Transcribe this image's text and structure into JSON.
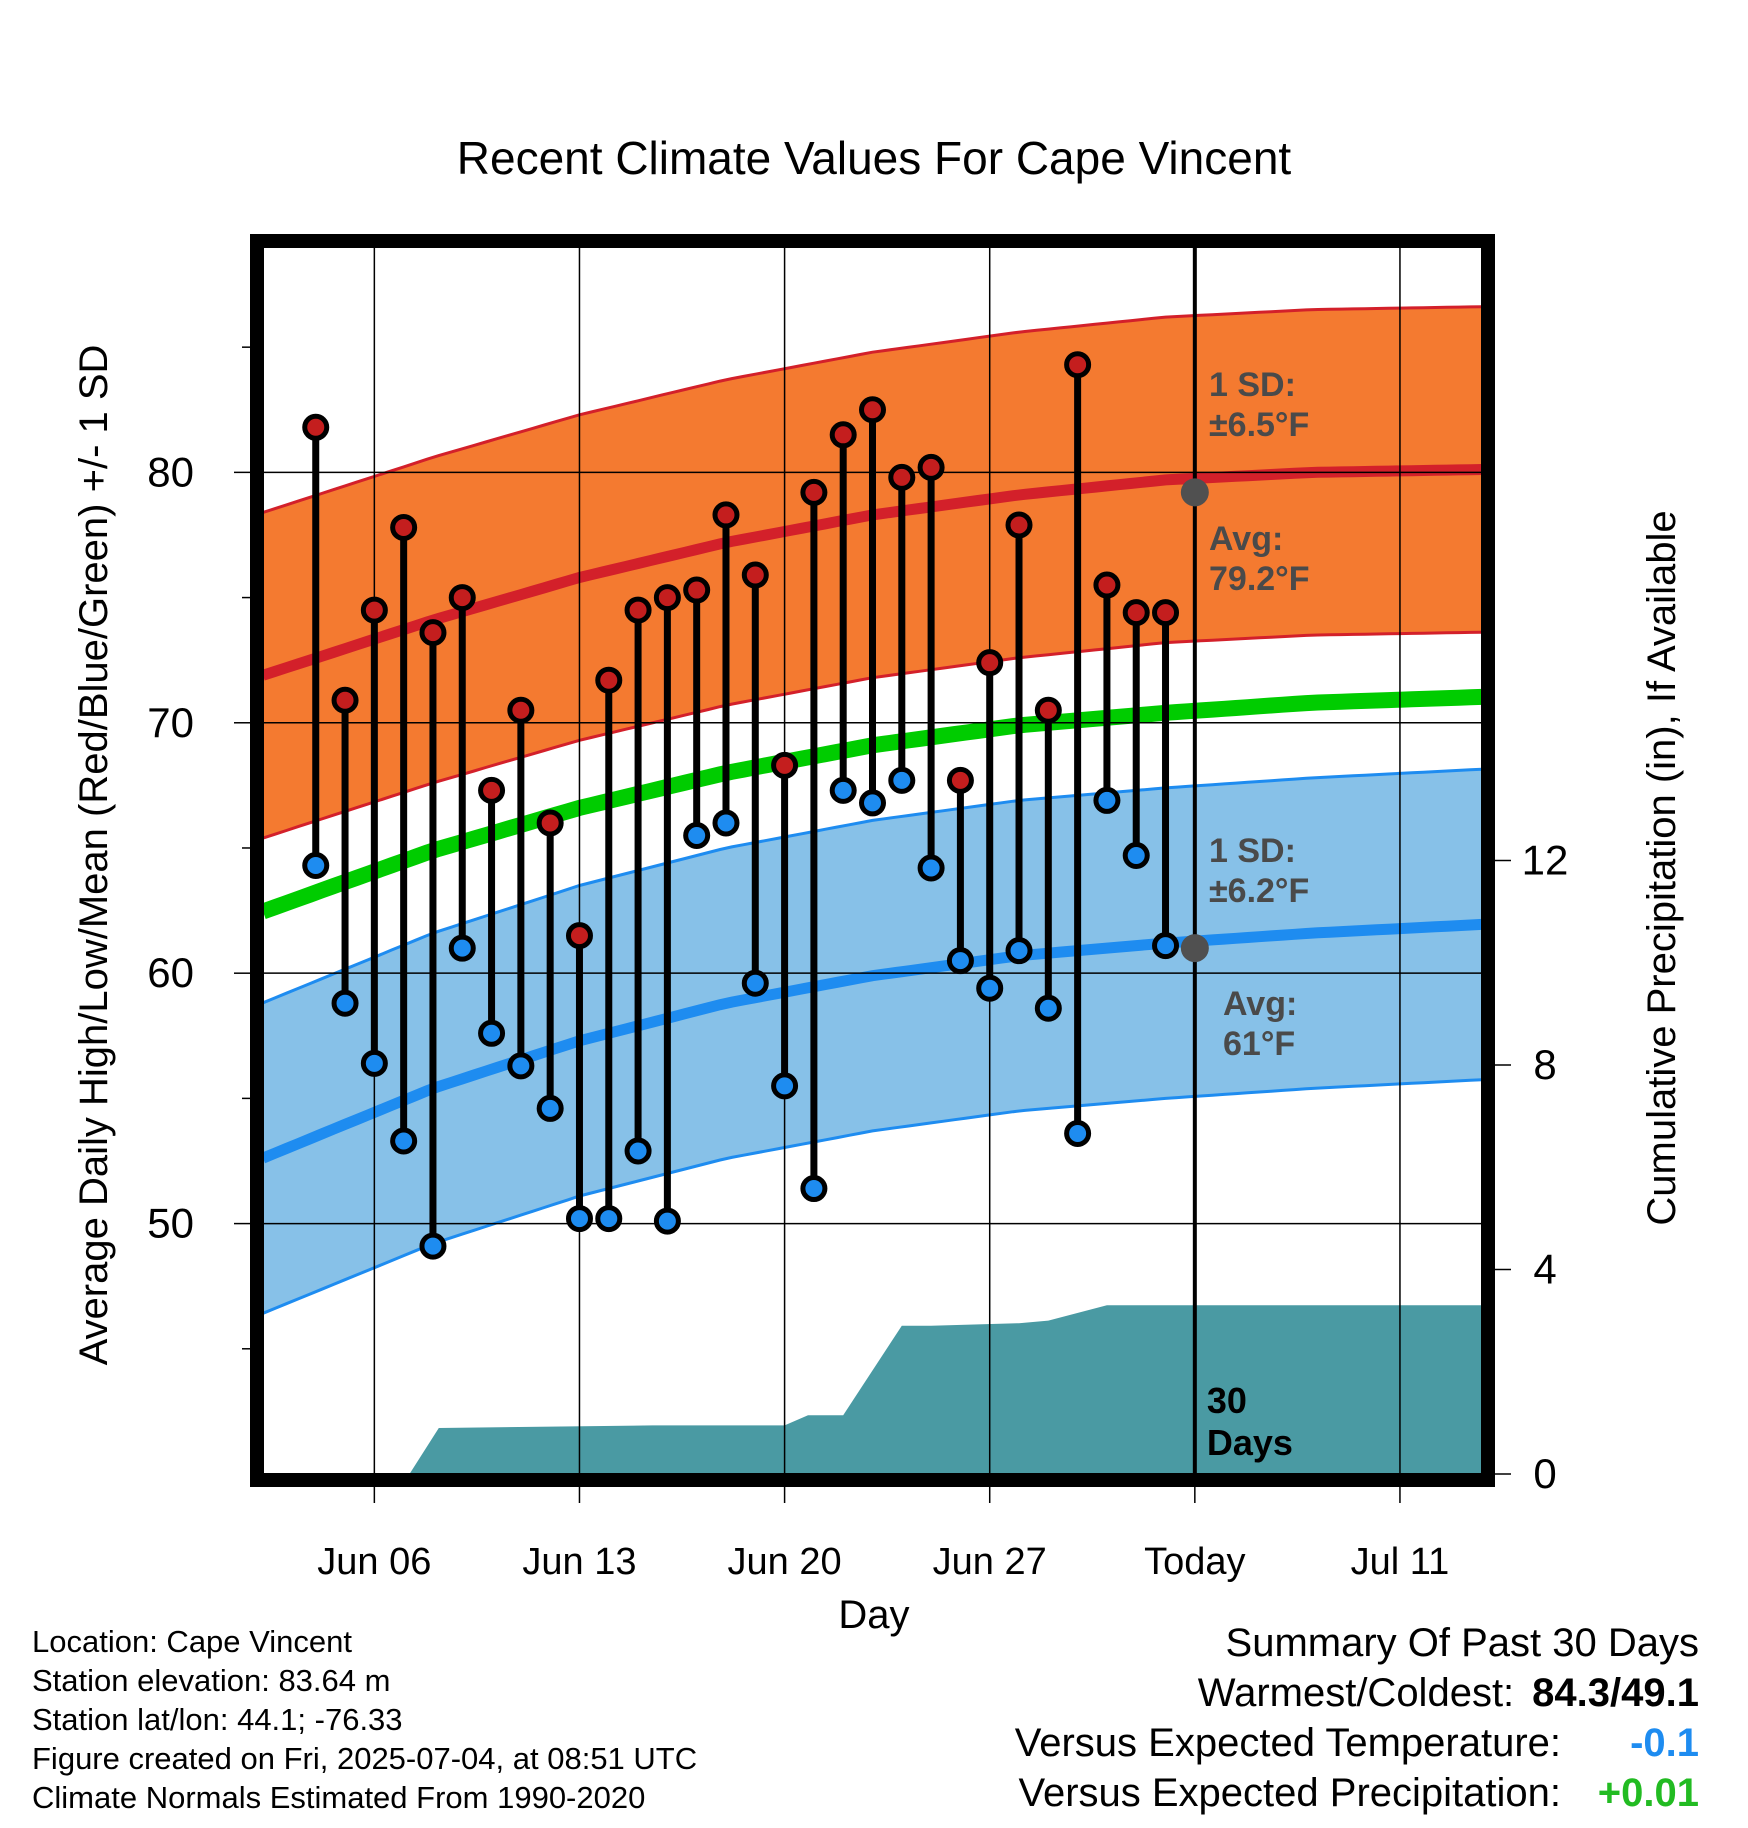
{
  "chart_data": {
    "type": "line",
    "title": "Recent Climate Values For Cape Vincent",
    "xlabel": "Day",
    "ylabel": "Average Daily High/Low/Mean (Red/Blue/Green) +/- 1 SD",
    "y2label": "Cumulative Precipitation (in), If Available",
    "ylim": [
      40,
      89
    ],
    "y2lim": [
      0,
      24
    ],
    "yticks": [
      50,
      60,
      70,
      80
    ],
    "y2ticks": [
      0,
      4,
      8,
      12
    ],
    "xlim": [
      -0.8,
      40.8
    ],
    "xtick_labels": [
      {
        "day": 3,
        "label": "Jun 06"
      },
      {
        "day": 10,
        "label": "Jun 13"
      },
      {
        "day": 17,
        "label": "Jun 20"
      },
      {
        "day": 24,
        "label": "Jun 27"
      },
      {
        "day": 31,
        "label": "Today"
      },
      {
        "day": 38,
        "label": "Jul 11"
      }
    ],
    "today_day": 31,
    "today_marker_label": "30 Days",
    "daily_observations": {
      "day": [
        1,
        2,
        3,
        4,
        5,
        6,
        7,
        8,
        9,
        10,
        11,
        12,
        13,
        14,
        15,
        16,
        17,
        18,
        19,
        20,
        21,
        22,
        23,
        24,
        25,
        26,
        27,
        28,
        29,
        30
      ],
      "high": [
        81.8,
        70.9,
        74.5,
        77.8,
        73.6,
        75.0,
        67.3,
        70.5,
        66.0,
        61.5,
        71.7,
        74.5,
        75.0,
        75.3,
        78.3,
        75.9,
        68.3,
        79.2,
        81.5,
        82.5,
        79.8,
        80.2,
        67.7,
        72.4,
        77.9,
        70.5,
        84.3,
        75.5,
        74.4,
        74.4
      ],
      "low": [
        64.3,
        58.8,
        56.4,
        53.3,
        49.1,
        61.0,
        57.6,
        56.3,
        54.6,
        50.2,
        50.2,
        52.9,
        50.1,
        65.5,
        66.0,
        59.6,
        55.5,
        51.4,
        67.3,
        66.8,
        67.7,
        64.2,
        60.5,
        59.4,
        60.9,
        58.6,
        53.6,
        66.9,
        64.7,
        61.1
      ]
    },
    "normals": {
      "day": [
        0,
        5,
        10,
        15,
        20,
        25,
        30,
        35,
        40
      ],
      "mean_high": [
        72.2,
        74.1,
        75.8,
        77.2,
        78.3,
        79.1,
        79.7,
        80.0,
        80.1
      ],
      "mean_low": [
        53.0,
        55.4,
        57.3,
        58.8,
        59.9,
        60.7,
        61.2,
        61.6,
        61.9
      ],
      "mean": [
        62.8,
        64.9,
        66.6,
        68.0,
        69.1,
        69.9,
        70.4,
        70.8,
        71.0
      ],
      "high_sd": 6.5,
      "low_sd": 6.2
    },
    "precipitation": {
      "day": [
        -0.8,
        4.2,
        5.2,
        12.5,
        17.0,
        17.8,
        19.0,
        21.0,
        22.0,
        25.0,
        26.0,
        28.0,
        29.0,
        40.8
      ],
      "cumulative_in": [
        0,
        0,
        0.9,
        0.95,
        0.95,
        1.15,
        1.15,
        2.9,
        2.9,
        2.95,
        3.0,
        3.3,
        3.3,
        3.3
      ]
    },
    "annotations": {
      "high_sd": {
        "line1": "1 SD:",
        "line2": "±6.5°F"
      },
      "high_avg": {
        "line1": "Avg:",
        "line2": "79.2°F",
        "value": 79.2
      },
      "low_sd": {
        "line1": "1 SD:",
        "line2": "±6.2°F"
      },
      "low_avg": {
        "line1": "Avg:",
        "line2": "61°F",
        "value": 61.0
      }
    },
    "colors": {
      "high_band": "#f47a30",
      "high_line": "#d3202a",
      "low_band": "#87c1e8",
      "low_line": "#1e8cf0",
      "mean_line": "#00cc00",
      "precip": "#4a9aa3",
      "high_point": "#c41e1e",
      "low_point": "#1e8cf0",
      "annotation_text": "#4a4a4a",
      "avg_dot": "#505050"
    }
  },
  "footer": {
    "location": "Location: Cape Vincent",
    "elevation": "Station elevation: 83.64 m",
    "latlon": "Station lat/lon: 44.1; -76.33",
    "created": "Figure created on Fri, 2025-07-04, at 08:51 UTC",
    "normals": "Climate Normals Estimated From 1990-2020"
  },
  "summary": {
    "title": "Summary Of Past 30 Days",
    "warmest_label": "Warmest/Coldest:",
    "warmest_value": "84.3/49.1",
    "temp_label": "Versus Expected Temperature:",
    "temp_value": "-0.1",
    "temp_color": "#1e8cf0",
    "precip_label": "Versus Expected Precipitation:",
    "precip_value": "+0.01",
    "precip_color": "#22bb22"
  }
}
